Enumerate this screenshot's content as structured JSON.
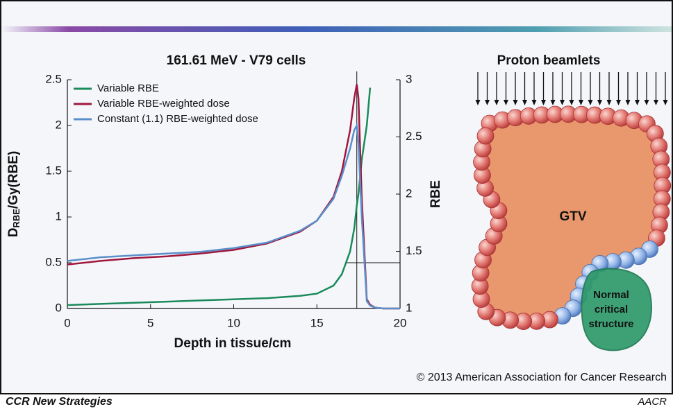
{
  "chart_data": {
    "type": "line",
    "title": "161.61 MeV - V79 cells",
    "xlabel": "Depth in tissue/cm",
    "ylabel": {
      "main": "D",
      "sub": "RBE",
      "rest": "/Gy(RBE)"
    },
    "y2label": "RBE",
    "x": [
      0,
      2,
      4,
      6,
      8,
      10,
      12,
      14,
      15,
      16,
      16.5,
      17,
      17.25,
      17.4,
      17.5,
      17.7,
      18,
      18.2,
      18.5,
      19,
      20
    ],
    "series": [
      {
        "name": "Variable RBE",
        "color": "#1a8a5a",
        "axis": "y2",
        "values": [
          1.03,
          1.04,
          1.05,
          1.06,
          1.07,
          1.08,
          1.09,
          1.11,
          1.13,
          1.2,
          1.3,
          1.5,
          1.7,
          1.9,
          2.0,
          2.3,
          2.6,
          2.93,
          null,
          null,
          null
        ]
      },
      {
        "name": "Variable RBE-weighted dose",
        "color": "#a0163c",
        "values": [
          0.48,
          0.52,
          0.55,
          0.57,
          0.6,
          0.64,
          0.71,
          0.84,
          0.96,
          1.22,
          1.5,
          1.95,
          2.3,
          2.45,
          2.3,
          1.2,
          0.1,
          0.04,
          0.01,
          0,
          0
        ]
      },
      {
        "name": "Constant (1.1) RBE-weighted dose",
        "color": "#5b8fc9",
        "values": [
          0.52,
          0.56,
          0.58,
          0.6,
          0.62,
          0.66,
          0.72,
          0.85,
          0.96,
          1.2,
          1.45,
          1.75,
          1.95,
          2.0,
          1.8,
          1.0,
          0.08,
          0.03,
          0.01,
          0,
          0
        ]
      }
    ],
    "xlim": [
      0,
      20
    ],
    "xticks": [
      0,
      5,
      10,
      15,
      20
    ],
    "ylim": [
      0,
      2.5
    ],
    "yticks": [
      0,
      0.5,
      1,
      1.5,
      2,
      2.5
    ],
    "y2lim": [
      1,
      3
    ],
    "y2ticks": [
      1,
      1.5,
      2,
      2.5,
      3
    ],
    "reference_x": 17.4,
    "reference_y": 0.5,
    "reference_y_from": 16.8,
    "legend": "upper left"
  },
  "diagram": {
    "title": "Proton beamlets",
    "target": "GTV",
    "organ": [
      "Normal",
      "critical",
      "structure"
    ]
  },
  "credit": "© 2013 American Association for Cancer Research",
  "footer": {
    "series": "CCR New Strategies",
    "logo": "AACR"
  }
}
